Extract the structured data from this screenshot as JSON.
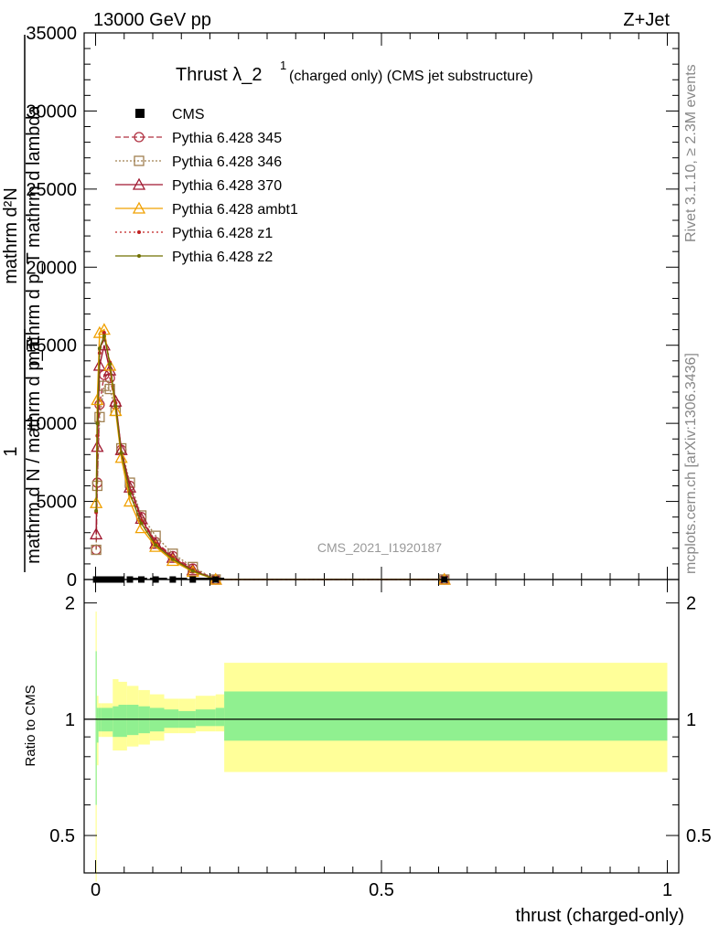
{
  "header": {
    "left": "13000 GeV pp",
    "right": "Z+Jet"
  },
  "side": {
    "rivet": "Rivet 3.1.10, ≥ 2.3M events",
    "mcplots": "mcplots.cern.ch [arXiv:1306.3436]"
  },
  "main": {
    "title_prefix": "Thrust λ_2",
    "title_sup": "1",
    "title_suffix": " (charged only) (CMS jet substructure)",
    "ylabel_num1": "mathrm d²N",
    "ylabel_den1": "mathrm d p_T mathrm d lambda",
    "ylabel_num2": "1",
    "ylabel_den2": "mathrm d N / mathrm d p_T",
    "watermark": "CMS_2021_I1920187",
    "yticks": [
      "0",
      "5000",
      "10000",
      "15000",
      "20000",
      "25000",
      "30000",
      "35000"
    ]
  },
  "ratio": {
    "ylabel": "Ratio to CMS",
    "yticks": [
      "0.5",
      "1",
      "2"
    ],
    "xticks": [
      "0",
      "0.5",
      "1"
    ]
  },
  "xlabel": "thrust (charged-only)",
  "colors": {
    "p345": "#b03040",
    "p346": "#a08050",
    "p370": "#a01830",
    "ambt1": "#f0a000",
    "z1": "#c02020",
    "z2": "#707000",
    "band_inner": "#90f090",
    "band_outer": "#ffff99"
  },
  "chart_data": {
    "type": "line",
    "x": [
      0.001,
      0.003,
      0.007,
      0.015,
      0.025,
      0.035,
      0.045,
      0.06,
      0.08,
      0.105,
      0.135,
      0.17,
      0.21,
      0.61
    ],
    "series": [
      {
        "name": "CMS",
        "values": [
          0,
          0,
          0,
          0,
          0,
          0,
          0,
          0,
          0,
          0,
          0,
          0,
          0,
          0
        ]
      },
      {
        "name": "Pythia 6.428 345",
        "values": [
          1900,
          6200,
          11200,
          13100,
          12900,
          11200,
          8300,
          6000,
          4000,
          2400,
          1500,
          700,
          2,
          2
        ]
      },
      {
        "name": "Pythia 6.428 346",
        "values": [
          1900,
          6000,
          10400,
          12400,
          12200,
          10800,
          8400,
          6200,
          4100,
          2800,
          1650,
          800,
          2,
          2
        ]
      },
      {
        "name": "Pythia 6.428 370",
        "values": [
          2900,
          8500,
          13700,
          15000,
          13400,
          11400,
          8300,
          5900,
          3900,
          2300,
          1400,
          600,
          2,
          2
        ]
      },
      {
        "name": "Pythia 6.428 ambt1",
        "values": [
          4900,
          11500,
          15800,
          16000,
          13700,
          10800,
          7800,
          5000,
          3300,
          2100,
          1200,
          500,
          2,
          2
        ]
      },
      {
        "name": "Pythia 6.428 z1",
        "values": [
          4300,
          9200,
          14500,
          15800,
          13900,
          11300,
          8100,
          5600,
          3800,
          2300,
          1400,
          600,
          2,
          2
        ]
      },
      {
        "name": "Pythia 6.428 z2",
        "values": [
          4400,
          10000,
          14800,
          15600,
          13800,
          11100,
          8100,
          5500,
          3600,
          2200,
          1300,
          550,
          2,
          2
        ]
      }
    ],
    "xlim": [
      -0.02,
      1.02
    ],
    "ylim": [
      0,
      35000
    ],
    "ratio": {
      "ylim": [
        0.4,
        2.3
      ],
      "log_y": true,
      "band_edges": [
        0,
        0.002,
        0.005,
        0.01,
        0.02,
        0.03,
        0.04,
        0.055,
        0.075,
        0.095,
        0.12,
        0.145,
        0.175,
        0.21,
        0.225,
        1.0
      ],
      "inner_lo": [
        0.6,
        0.87,
        0.93,
        0.93,
        0.93,
        0.9,
        0.9,
        0.91,
        0.92,
        0.93,
        0.95,
        0.95,
        0.96,
        0.96,
        0.88
      ],
      "inner_hi": [
        1.5,
        1.07,
        1.07,
        1.07,
        1.07,
        1.08,
        1.09,
        1.09,
        1.08,
        1.07,
        1.06,
        1.05,
        1.06,
        1.07,
        1.18
      ],
      "outer_lo": [
        0.38,
        0.76,
        0.9,
        0.9,
        0.9,
        0.83,
        0.83,
        0.85,
        0.86,
        0.88,
        0.92,
        0.92,
        0.93,
        0.93,
        0.73
      ],
      "outer_hi": [
        1.9,
        1.15,
        1.1,
        1.1,
        1.1,
        1.27,
        1.25,
        1.22,
        1.19,
        1.16,
        1.13,
        1.13,
        1.15,
        1.16,
        1.4
      ]
    }
  }
}
